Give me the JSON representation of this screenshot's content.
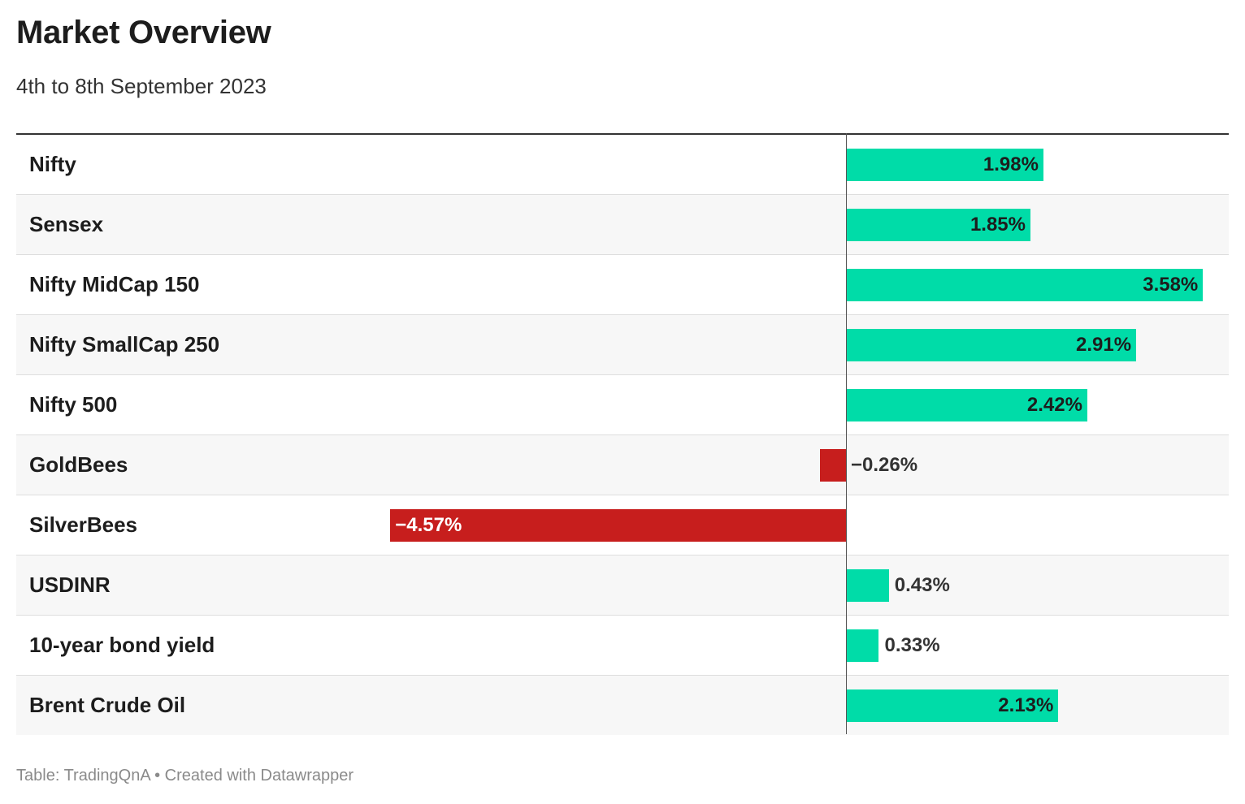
{
  "title": "Market Overview",
  "subtitle": "4th to 8th September 2023",
  "footer": "Table: TradingQnA • Created with Datawrapper",
  "colors": {
    "positive": "#00dca8",
    "negative": "#c71e1d",
    "text": "#1d1d1d"
  },
  "chart_data": {
    "type": "bar",
    "orientation": "horizontal",
    "categories": [
      "Nifty",
      "Sensex",
      "Nifty MidCap 150",
      "Nifty SmallCap 250",
      "Nifty 500",
      "GoldBees",
      "SilverBees",
      "USDINR",
      "10-year bond yield",
      "Brent Crude Oil"
    ],
    "values": [
      1.98,
      1.85,
      3.58,
      2.91,
      2.42,
      -0.26,
      -4.57,
      0.43,
      0.33,
      2.13
    ],
    "labels": [
      "1.98%",
      "1.85%",
      "3.58%",
      "2.91%",
      "2.42%",
      "−0.26%",
      "−4.57%",
      "0.43%",
      "0.33%",
      "2.13%"
    ],
    "xlim": [
      -8.3,
      3.85
    ]
  }
}
